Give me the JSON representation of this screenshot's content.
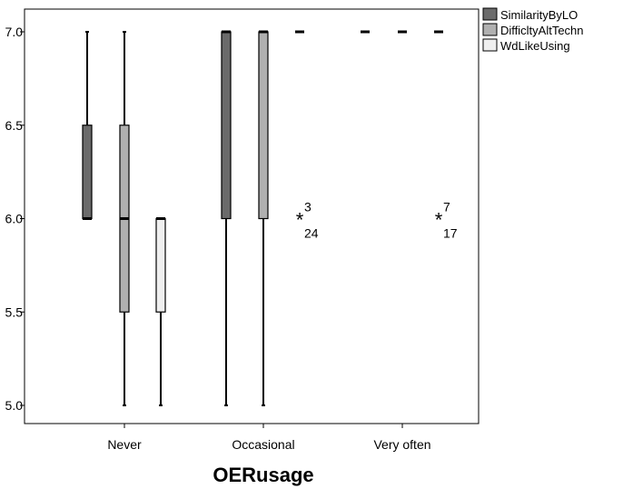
{
  "chart_data": {
    "type": "boxplot",
    "xlabel": "OERusage",
    "ylabel": "",
    "categories": [
      "Never",
      "Occasional",
      "Very often"
    ],
    "ylim": [
      4.95,
      7.05
    ],
    "yticks": [
      5.0,
      5.5,
      6.0,
      6.5,
      7.0
    ],
    "ytick_labels": [
      "5.0",
      "5.5",
      "6.0",
      "6.5",
      "7.0"
    ],
    "legend_position": "top-right outside plot",
    "series": [
      {
        "name": "SimilarityByLO",
        "color": "#6b6b6b",
        "boxes": [
          {
            "category": "Never",
            "min": 6.0,
            "q1": 6.0,
            "median": 6.0,
            "q3": 6.5,
            "max": 7.0
          },
          {
            "category": "Occasional",
            "min": 5.0,
            "q1": 6.0,
            "median": 7.0,
            "q3": 7.0,
            "max": 7.0
          },
          {
            "category": "Very often",
            "min": 7.0,
            "q1": 7.0,
            "median": 7.0,
            "q3": 7.0,
            "max": 7.0
          }
        ]
      },
      {
        "name": "DifficltyAltTechn",
        "color": "#b0b0b0",
        "boxes": [
          {
            "category": "Never",
            "min": 5.0,
            "q1": 5.5,
            "median": 6.0,
            "q3": 6.5,
            "max": 7.0
          },
          {
            "category": "Occasional",
            "min": 5.0,
            "q1": 6.0,
            "median": 7.0,
            "q3": 7.0,
            "max": 7.0
          },
          {
            "category": "Very often",
            "min": 7.0,
            "q1": 7.0,
            "median": 7.0,
            "q3": 7.0,
            "max": 7.0
          }
        ]
      },
      {
        "name": "WdLikeUsing",
        "color": "#efefef",
        "boxes": [
          {
            "category": "Never",
            "min": 5.0,
            "q1": 5.5,
            "median": 6.0,
            "q3": 6.0,
            "max": 6.0
          },
          {
            "category": "Occasional",
            "min": 7.0,
            "q1": 7.0,
            "median": 7.0,
            "q3": 7.0,
            "max": 7.0
          },
          {
            "category": "Very often",
            "min": 7.0,
            "q1": 7.0,
            "median": 7.0,
            "q3": 7.0,
            "max": 7.0
          }
        ]
      }
    ],
    "outliers": [
      {
        "category": "Occasional",
        "series": "WdLikeUsing",
        "value": 6.0,
        "marker": "*",
        "labels": [
          "3",
          "24"
        ]
      },
      {
        "category": "Very often",
        "series": "WdLikeUsing",
        "value": 6.0,
        "marker": "*",
        "labels": [
          "7",
          "17"
        ]
      }
    ]
  }
}
